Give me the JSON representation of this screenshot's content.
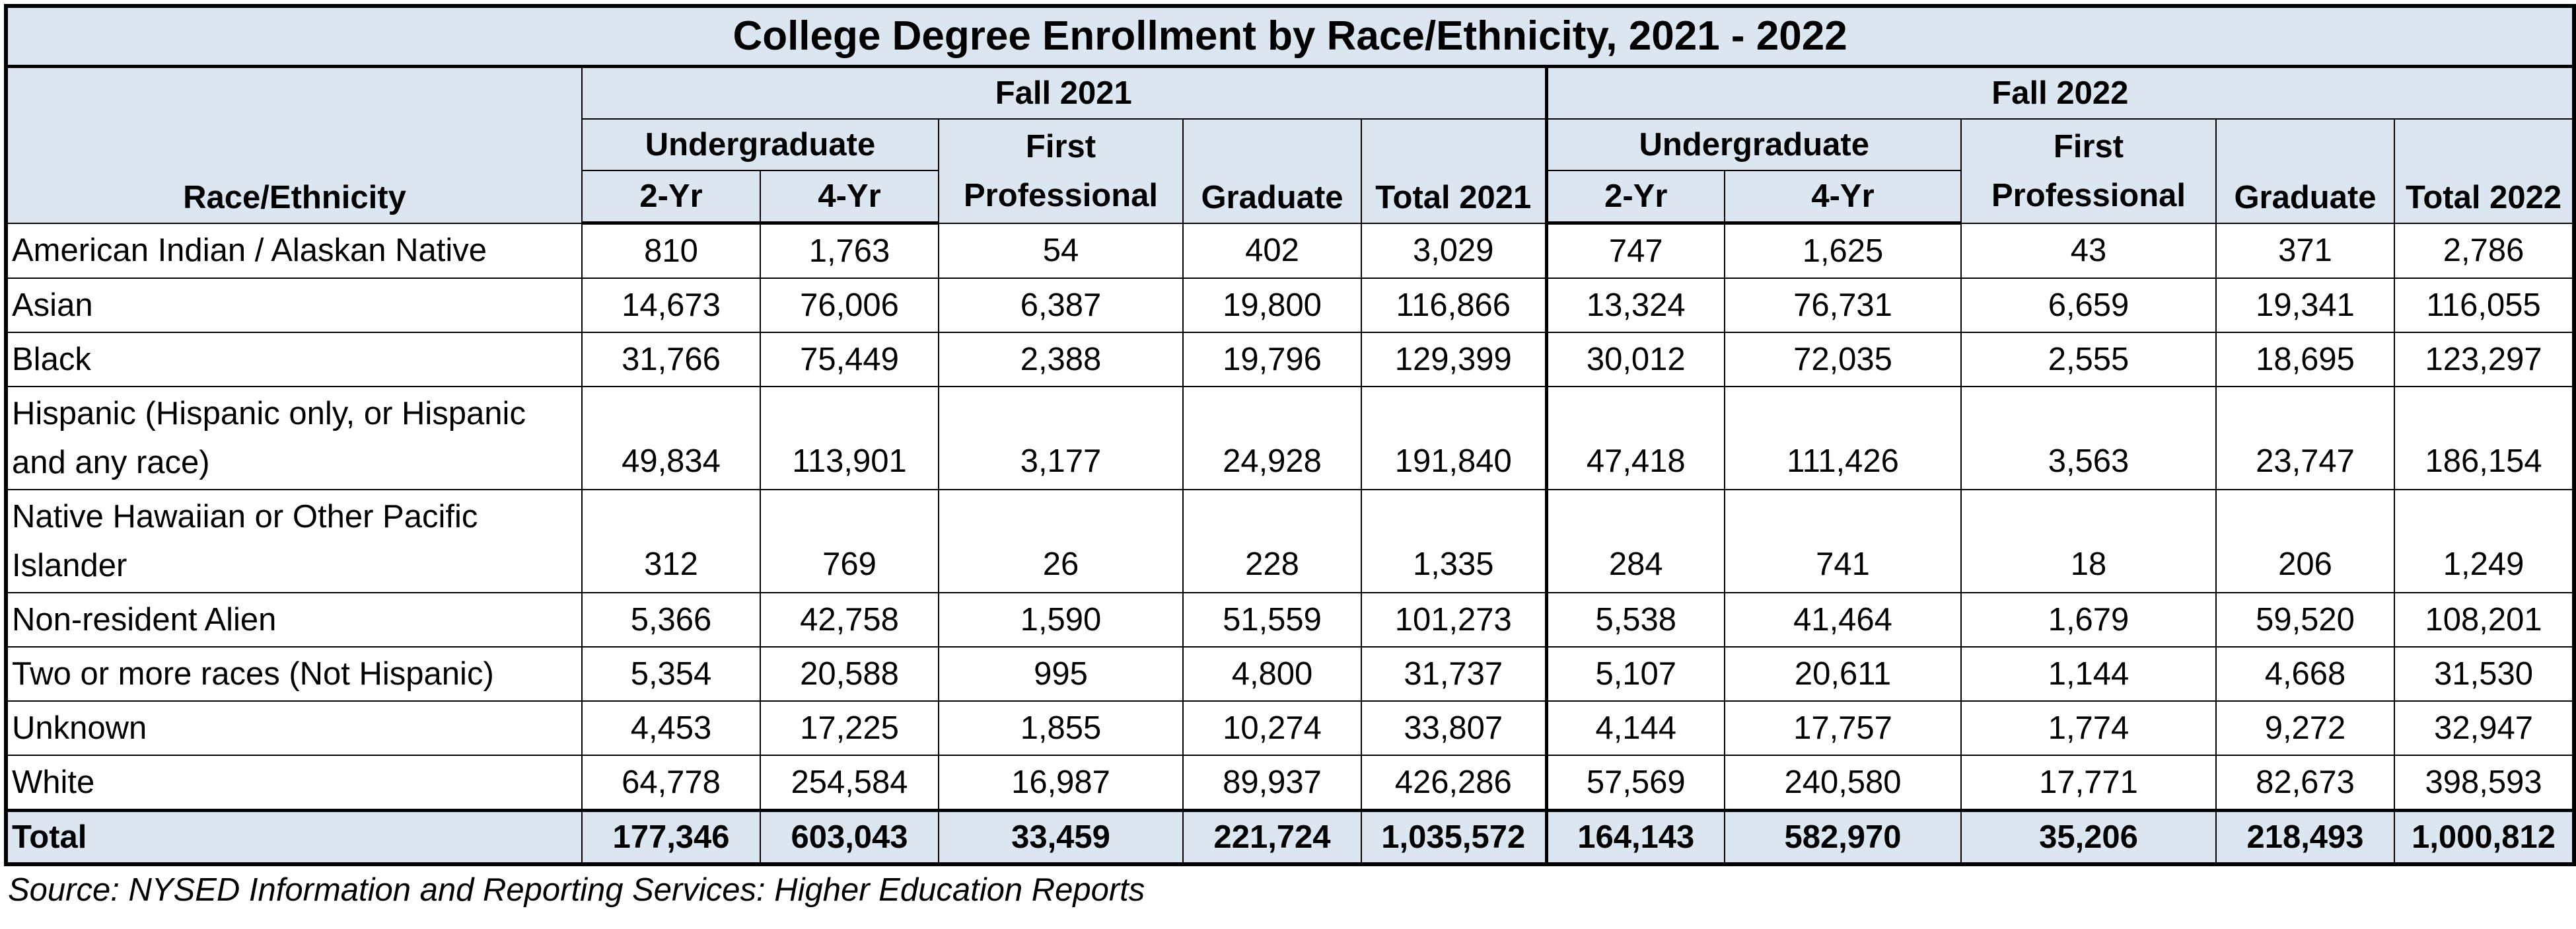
{
  "title": "College Degree Enrollment by Race/Ethnicity, 2021 - 2022",
  "headers": {
    "race_label": "Race/Ethnicity",
    "fall_2021": "Fall 2021",
    "fall_2022": "Fall 2022",
    "undergraduate": "Undergraduate",
    "first": "First",
    "professional": "Professional",
    "graduate": "Graduate",
    "two_yr": "2-Yr",
    "four_yr": "4-Yr",
    "total_2021": "Total 2021",
    "total_2022": "Total 2022"
  },
  "rows": [
    {
      "label": "American Indian / Alaskan Native",
      "v": [
        "810",
        "1,763",
        "54",
        "402",
        "3,029",
        "747",
        "1,625",
        "43",
        "371",
        "2,786"
      ]
    },
    {
      "label": "Asian",
      "v": [
        "14,673",
        "76,006",
        "6,387",
        "19,800",
        "116,866",
        "13,324",
        "76,731",
        "6,659",
        "19,341",
        "116,055"
      ]
    },
    {
      "label": "Black",
      "v": [
        "31,766",
        "75,449",
        "2,388",
        "19,796",
        "129,399",
        "30,012",
        "72,035",
        "2,555",
        "18,695",
        "123,297"
      ]
    },
    {
      "label": "Hispanic (Hispanic only, or Hispanic and any race)",
      "v": [
        "49,834",
        "113,901",
        "3,177",
        "24,928",
        "191,840",
        "47,418",
        "111,426",
        "3,563",
        "23,747",
        "186,154"
      ]
    },
    {
      "label": "Native Hawaiian or Other Pacific Islander",
      "v": [
        "312",
        "769",
        "26",
        "228",
        "1,335",
        "284",
        "741",
        "18",
        "206",
        "1,249"
      ]
    },
    {
      "label": "Non-resident Alien",
      "v": [
        "5,366",
        "42,758",
        "1,590",
        "51,559",
        "101,273",
        "5,538",
        "41,464",
        "1,679",
        "59,520",
        "108,201"
      ]
    },
    {
      "label": "Two or more races (Not Hispanic)",
      "v": [
        "5,354",
        "20,588",
        "995",
        "4,800",
        "31,737",
        "5,107",
        "20,611",
        "1,144",
        "4,668",
        "31,530"
      ]
    },
    {
      "label": "Unknown",
      "v": [
        "4,453",
        "17,225",
        "1,855",
        "10,274",
        "33,807",
        "4,144",
        "17,757",
        "1,774",
        "9,272",
        "32,947"
      ]
    },
    {
      "label": "White",
      "v": [
        "64,778",
        "254,584",
        "16,987",
        "89,937",
        "426,286",
        "57,569",
        "240,580",
        "17,771",
        "82,673",
        "398,593"
      ]
    }
  ],
  "total": {
    "label": "Total",
    "v": [
      "177,346",
      "603,043",
      "33,459",
      "221,724",
      "1,035,572",
      "164,143",
      "582,970",
      "35,206",
      "218,493",
      "1,000,812"
    ]
  },
  "source": "Source: NYSED Information and Reporting Services: Higher Education Reports",
  "colors": {
    "header_fill": "#dce6f1",
    "border": "#000000"
  }
}
